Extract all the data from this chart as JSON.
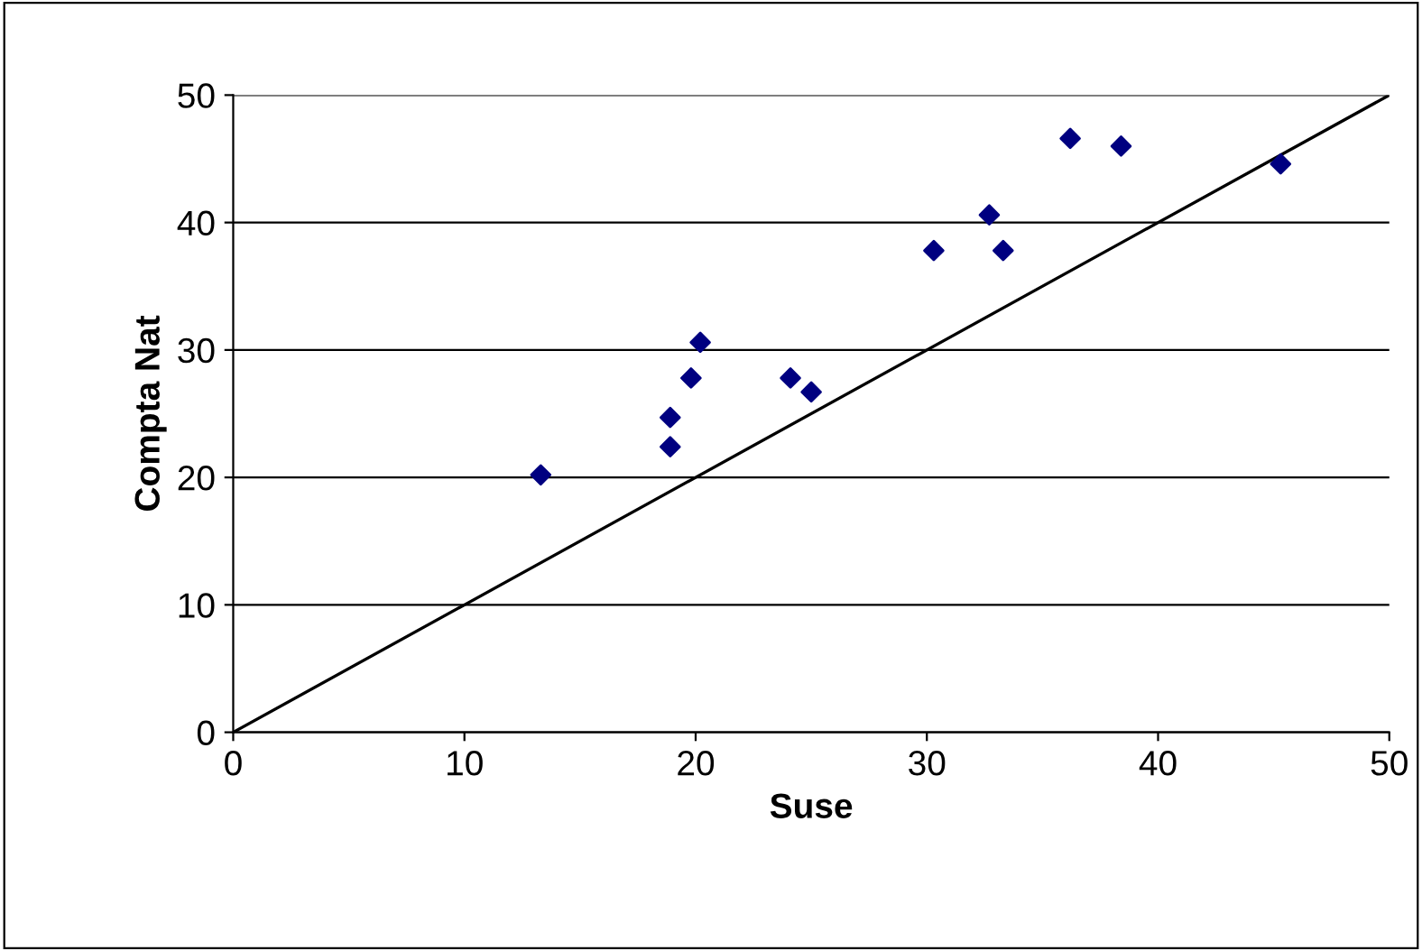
{
  "chart_data": {
    "type": "scatter",
    "xlabel": "Suse",
    "ylabel": "Compta Nat",
    "xlim": [
      0,
      50
    ],
    "ylim": [
      0,
      50
    ],
    "xticks": [
      0,
      10,
      20,
      30,
      40,
      50
    ],
    "yticks": [
      0,
      10,
      20,
      30,
      40,
      50
    ],
    "grid": "y",
    "series": [
      {
        "marker": "diamond",
        "color": "#000080",
        "x": [
          13.3,
          18.9,
          18.9,
          19.8,
          20.2,
          24.1,
          25.0,
          30.3,
          32.7,
          33.3,
          36.2,
          38.4,
          45.3
        ],
        "values": [
          20.2,
          22.4,
          24.7,
          27.8,
          30.6,
          27.8,
          26.7,
          37.8,
          40.6,
          37.8,
          46.6,
          46.0,
          44.6
        ]
      },
      {
        "type": "line",
        "color": "#000000",
        "x": [
          0,
          50
        ],
        "values": [
          0,
          50
        ]
      }
    ]
  }
}
